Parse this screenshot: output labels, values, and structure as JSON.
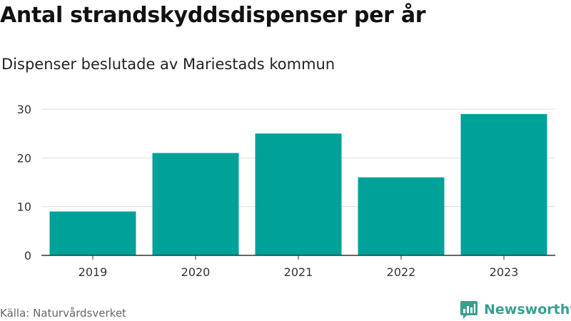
{
  "chart_data": {
    "type": "bar",
    "title": "Antal strandskyddsdispenser per år",
    "subtitle": "Dispenser beslutade av Mariestads kommun",
    "categories": [
      "2019",
      "2020",
      "2021",
      "2022",
      "2023"
    ],
    "values": [
      9,
      21,
      25,
      16,
      29
    ],
    "ylim": [
      0,
      30
    ],
    "yticks": [
      0,
      10,
      20,
      30
    ],
    "grid": true,
    "bar_color": "#00a199"
  },
  "footer": {
    "source": "Källa: Naturvårdsverket",
    "brand": "Newsworthy",
    "brand_color": "#3a9e91",
    "brand_icon": "newsworthy-logo-icon"
  }
}
